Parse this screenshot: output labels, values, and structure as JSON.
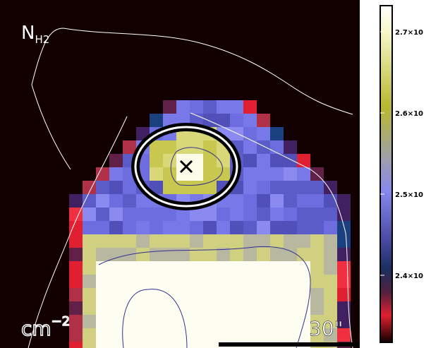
{
  "image": {
    "label": "N",
    "label_sub": "H2",
    "unit": "cm",
    "unit_sup": "−2",
    "scale_bar": "30\""
  },
  "colorbar": {
    "ticks": [
      "2.7×10",
      "2.6×10",
      "2.5×10",
      "2.4×10"
    ]
  }
}
